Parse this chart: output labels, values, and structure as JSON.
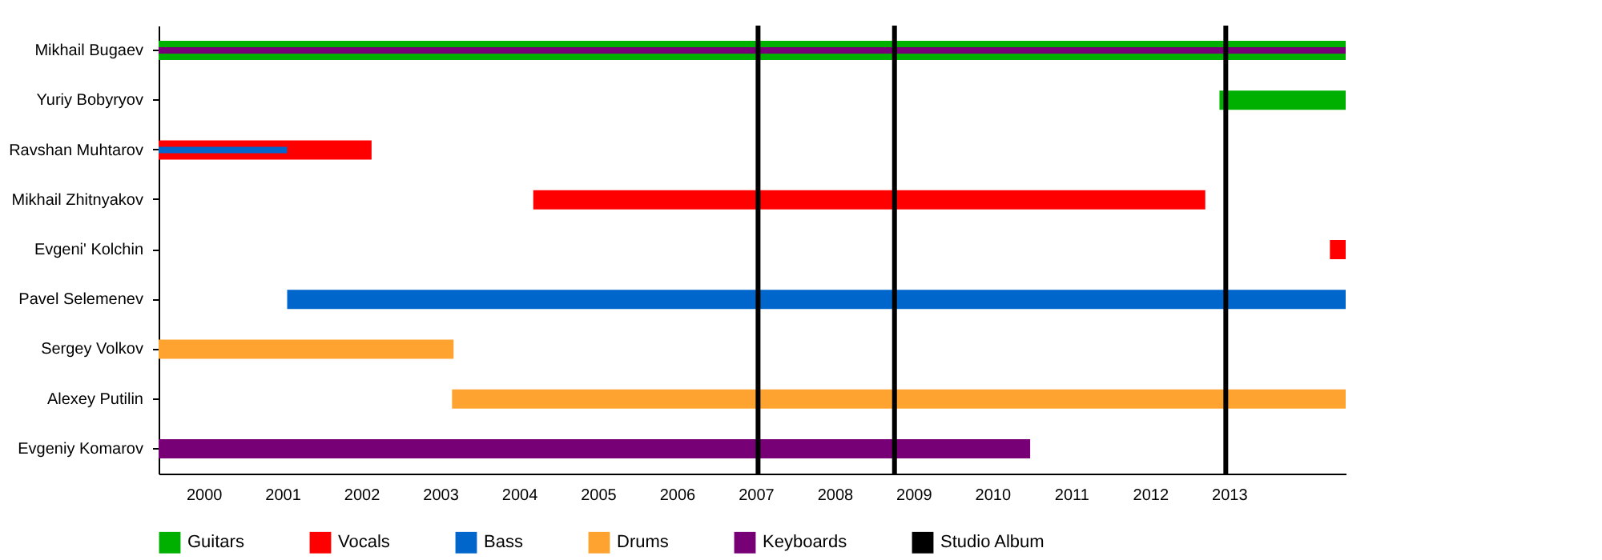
{
  "chart_data": {
    "type": "bar",
    "orientation": "horizontal",
    "categories": [
      "Mikhail Bugaev",
      "Yuriy Bobyryov",
      "Ravshan Muhtarov",
      "Mikhail Zhitnyakov",
      "Evgeni' Kolchin",
      "Pavel Selemenev",
      "Sergey Volkov",
      "Alexey Putilin",
      "Evgeniy Komarov"
    ],
    "series": [
      {
        "name": "Guitars",
        "color": "#00b000",
        "base": [
          1999.43,
          2012.88,
          null,
          null,
          null,
          null,
          null,
          null,
          null
        ],
        "values": [
          15.05,
          1.6,
          null,
          null,
          null,
          null,
          null,
          null,
          null
        ]
      },
      {
        "name": "Vocals",
        "color": "#ff0000",
        "base": [
          null,
          null,
          1999.43,
          2004.18,
          2014.28,
          null,
          null,
          null,
          null
        ],
        "values": [
          null,
          null,
          2.7,
          8.52,
          0.2,
          null,
          null,
          null,
          null
        ]
      },
      {
        "name": "Bass",
        "color": "#0066cc",
        "base": [
          null,
          null,
          1999.43,
          null,
          null,
          2001.06,
          null,
          null,
          null
        ],
        "values": [
          null,
          null,
          1.63,
          null,
          null,
          13.42,
          null,
          null,
          null
        ]
      },
      {
        "name": "Drums",
        "color": "#ffa330",
        "base": [
          null,
          null,
          null,
          null,
          null,
          null,
          1999.43,
          2003.15,
          null
        ],
        "values": [
          null,
          null,
          null,
          null,
          null,
          null,
          3.74,
          11.33,
          null
        ]
      },
      {
        "name": "Keyboards",
        "color": "#770077",
        "base": [
          1999.43,
          null,
          null,
          null,
          null,
          null,
          null,
          null,
          1999.43
        ],
        "values": [
          15.05,
          null,
          null,
          null,
          null,
          null,
          null,
          null,
          11.05
        ]
      }
    ],
    "xlim": [
      1999.43,
      2014.48
    ],
    "xticks": [
      2000,
      2001,
      2002,
      2003,
      2004,
      2005,
      2006,
      2007,
      2008,
      2009,
      2010,
      2011,
      2012,
      2013
    ],
    "ref_lines": [
      {
        "axis": "x",
        "value": 2007.03,
        "label": "Studio Album",
        "color": "#000000"
      },
      {
        "axis": "x",
        "value": 2008.76,
        "color": "#000000"
      },
      {
        "axis": "x",
        "value": 2012.96,
        "color": "#000000"
      }
    ],
    "legend": "bottom",
    "grid": false
  }
}
